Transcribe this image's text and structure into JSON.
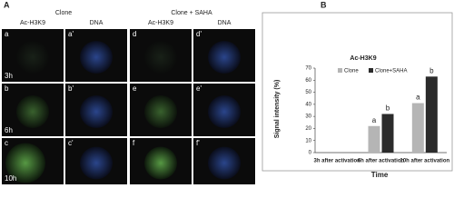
{
  "panel_a": {
    "label": "A",
    "groups": [
      "Clone",
      "Clone + SAHA"
    ],
    "columns": [
      "Ac-H3K9",
      "DNA",
      "Ac-H3K9",
      "DNA"
    ],
    "rows": [
      {
        "time": "3h",
        "cells": [
          "a",
          "a'",
          "d",
          "d'"
        ]
      },
      {
        "time": "6h",
        "cells": [
          "b",
          "b'",
          "e",
          "e'"
        ]
      },
      {
        "time": "10h",
        "cells": [
          "c",
          "c'",
          "f",
          "f'"
        ]
      }
    ]
  },
  "chart_data": {
    "type": "bar",
    "panel_label": "B",
    "title": "Ac-H3K9",
    "y_label": "Signal intensity (%)",
    "x_label": "Time",
    "categories": [
      "3h after activation",
      "6h after activation",
      "10h after activation"
    ],
    "series": [
      {
        "name": "Clone",
        "color": "#b5b5b5",
        "values": [
          0,
          22,
          41
        ],
        "annotations": [
          null,
          "a",
          "a"
        ]
      },
      {
        "name": "Clone+SAHA",
        "color": "#2b2b2b",
        "values": [
          0,
          32,
          63
        ],
        "annotations": [
          null,
          "b",
          "b"
        ]
      }
    ],
    "ylim": [
      0,
      70
    ],
    "yticks": [
      0,
      10,
      20,
      30,
      40,
      50,
      60,
      70
    ]
  }
}
